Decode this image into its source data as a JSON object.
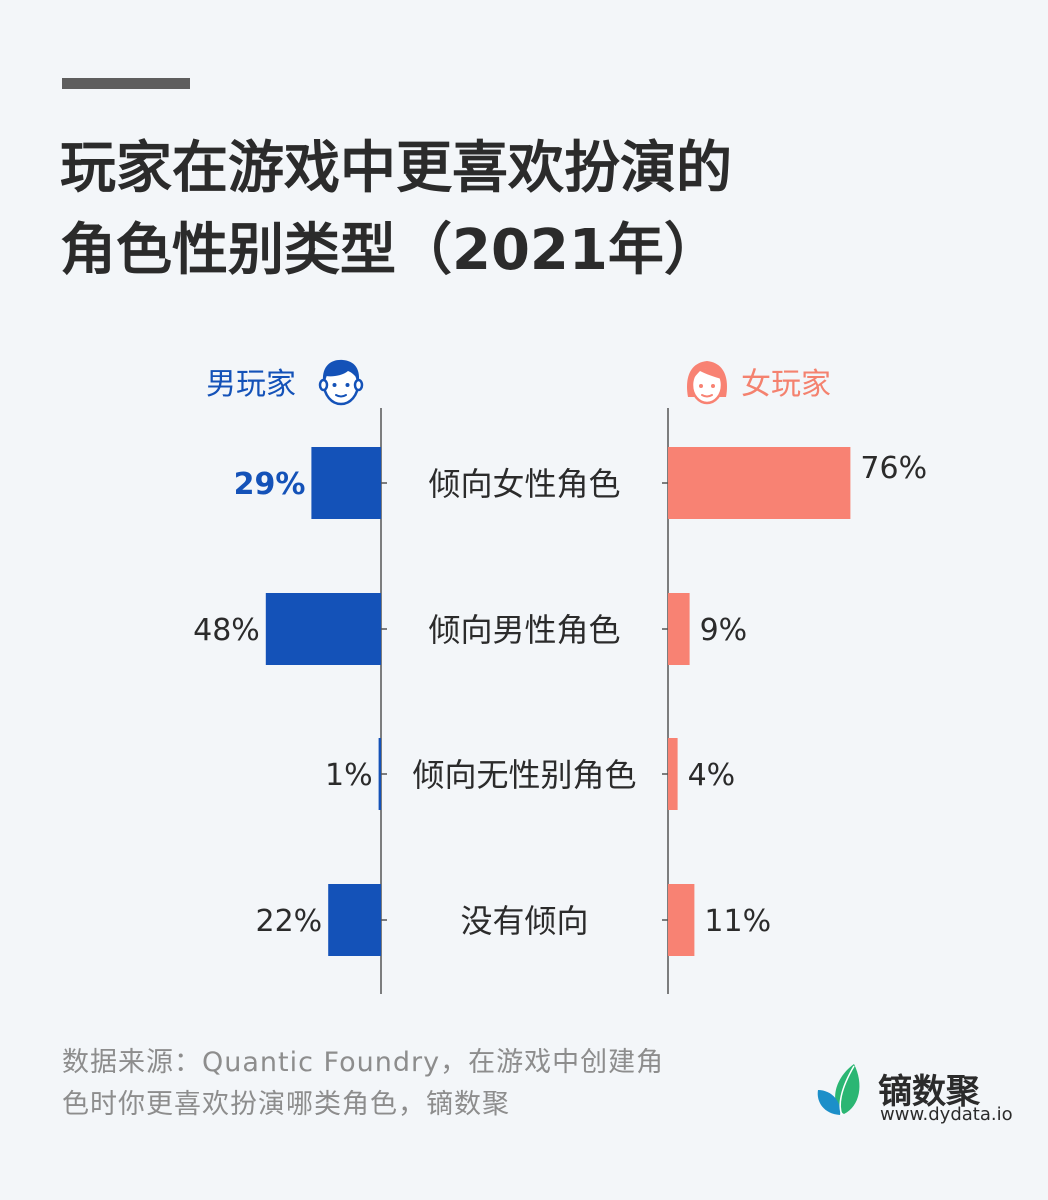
{
  "title": {
    "line1": "玩家在游戏中更喜欢扮演的",
    "line2": "角色性别类型（2021年）"
  },
  "legend": {
    "male": "男玩家",
    "female": "女玩家"
  },
  "colors": {
    "male": "#1452b8",
    "female": "#f88273",
    "text": "#2b2b2b",
    "axis": "#555555"
  },
  "chart_data": {
    "type": "bar",
    "categories": [
      "倾向女性角色",
      "倾向男性角色",
      "倾向无性别角色",
      "没有倾向"
    ],
    "series": [
      {
        "name": "男玩家",
        "values": [
          29,
          48,
          1,
          22
        ],
        "labels": [
          "29%",
          "48%",
          "1%",
          "22%"
        ],
        "highlight": [
          true,
          false,
          false,
          false
        ]
      },
      {
        "name": "女玩家",
        "values": [
          76,
          9,
          4,
          11
        ],
        "labels": [
          "76%",
          "9%",
          "4%",
          "11%"
        ]
      }
    ],
    "xlim": [
      0,
      100
    ],
    "grid": false,
    "legend_position": "top"
  },
  "source": {
    "line1": "数据来源：Quantic Foundry，在游戏中创建角",
    "line2": "色时你更喜欢扮演哪类角色，镝数聚"
  },
  "logo": {
    "name": "镝数聚",
    "url": "www.dydata.io"
  }
}
